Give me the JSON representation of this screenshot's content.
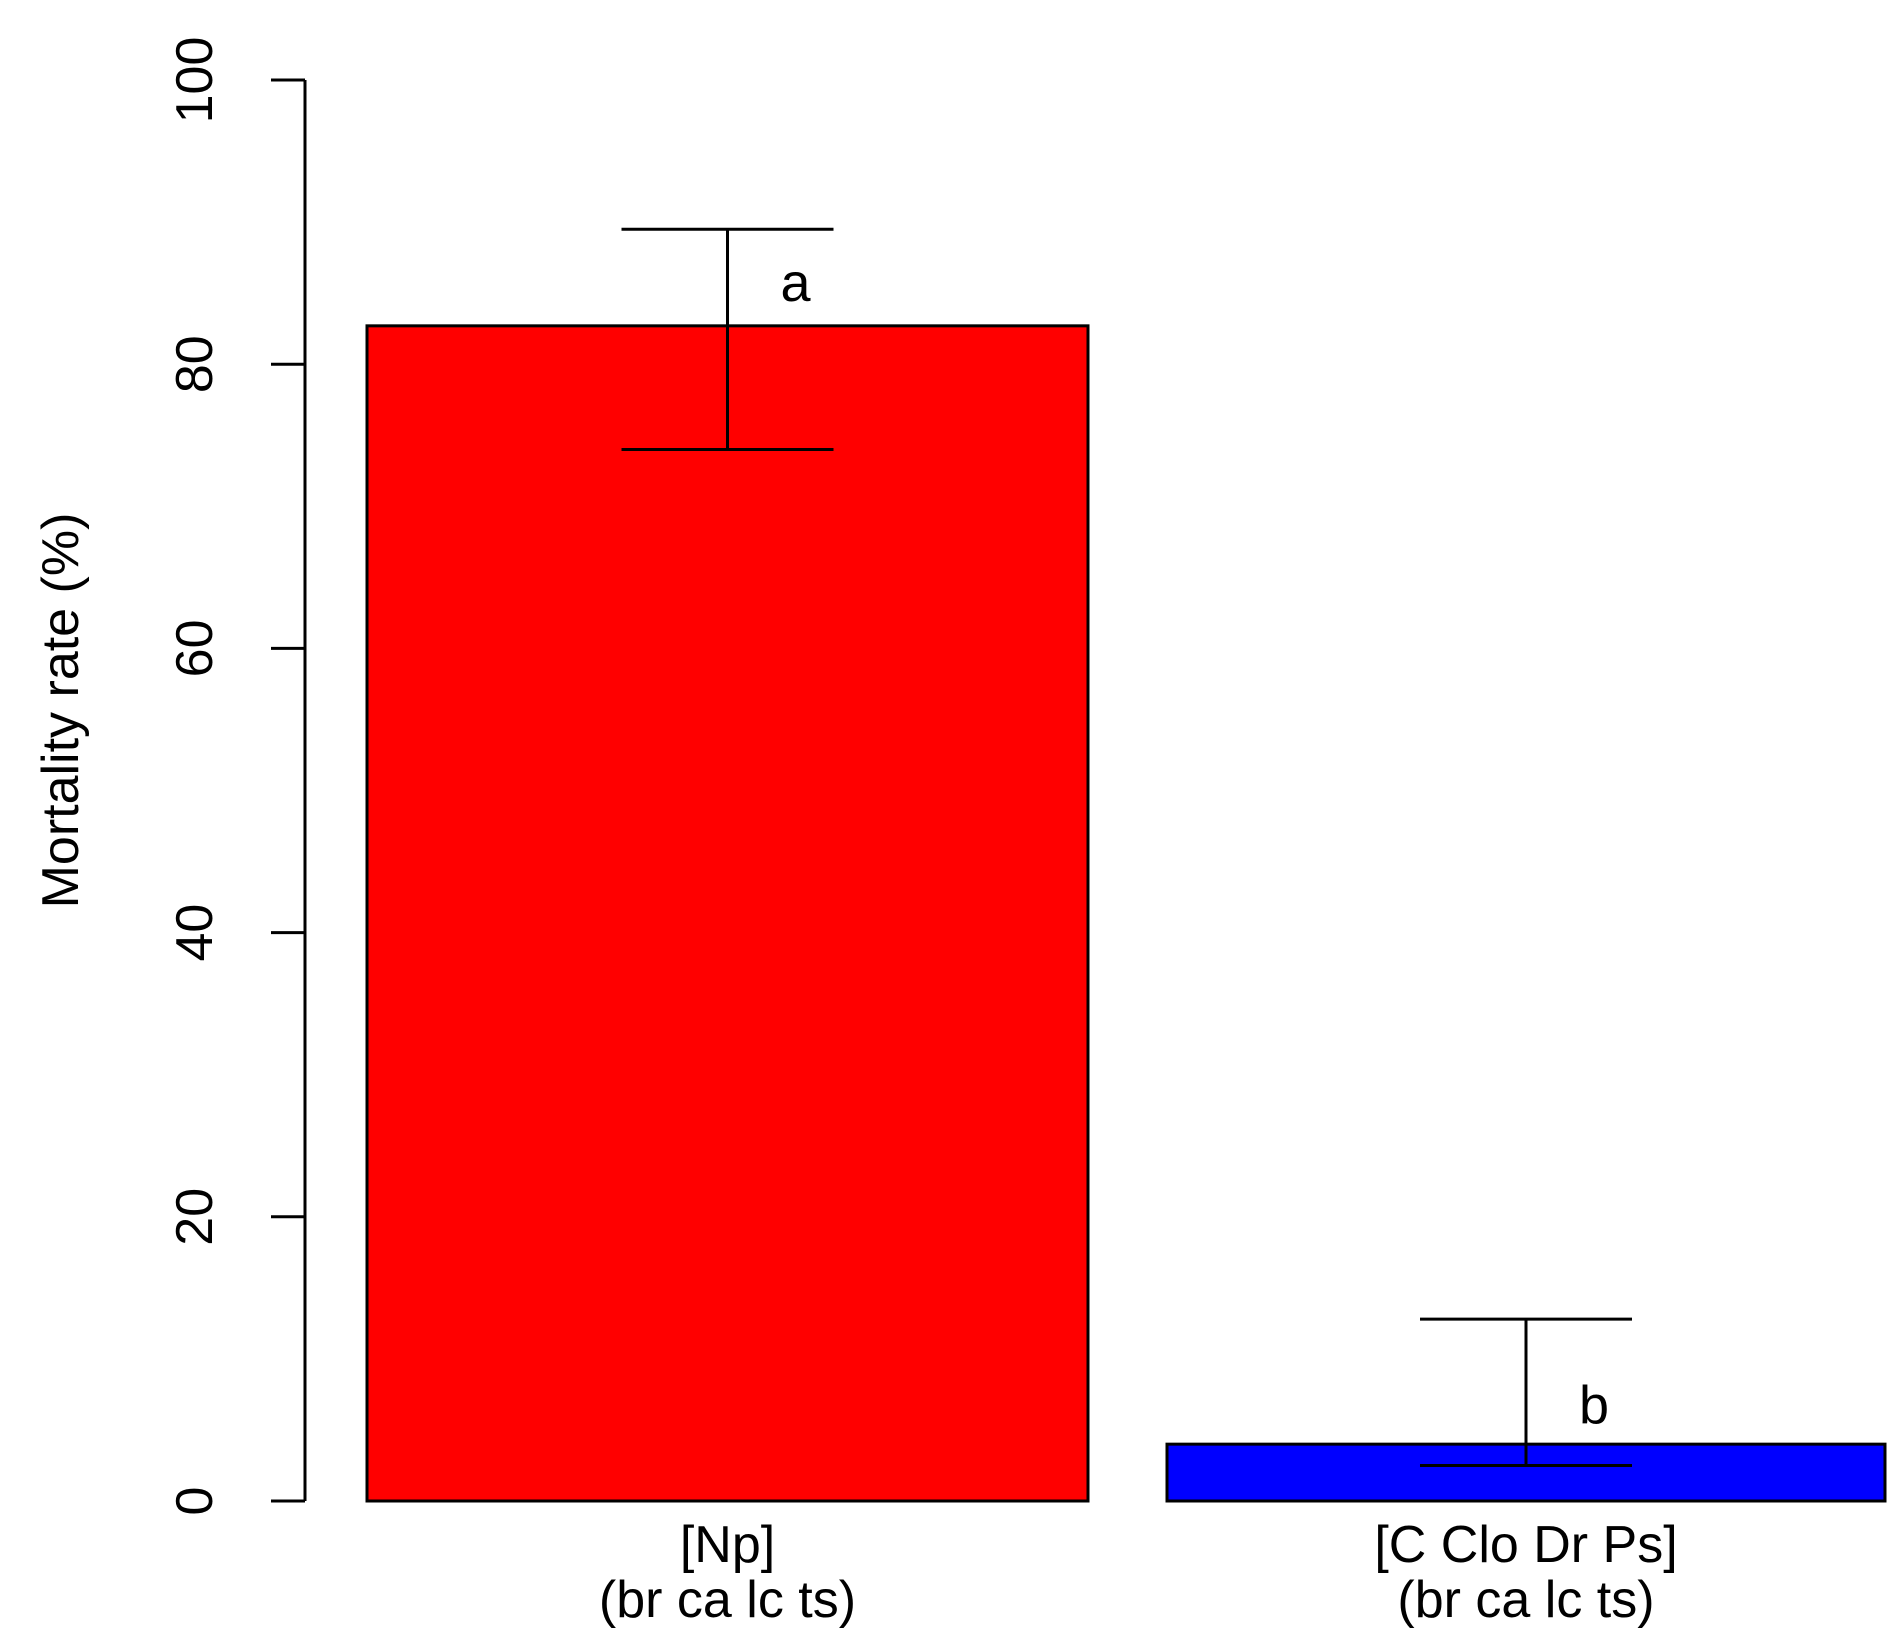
{
  "chart_data": {
    "type": "bar",
    "title": "",
    "xlabel": "",
    "ylabel": "Mortality rate (%)",
    "ylim": [
      0,
      100
    ],
    "yticks": [
      "0",
      "20",
      "40",
      "60",
      "80",
      "100"
    ],
    "grid": false,
    "categories": [
      {
        "line1": "[Np]",
        "line2": "(br ca lc ts)"
      },
      {
        "line1": "[C Clo Dr Ps]",
        "line2": "(br ca lc ts)"
      }
    ],
    "values": [
      82.7,
      4.0
    ],
    "error_low": [
      74.0,
      2.5
    ],
    "error_high": [
      89.5,
      12.8
    ],
    "significance_letters": [
      "a",
      "b"
    ],
    "colors": [
      "#ff0000",
      "#0000ff"
    ]
  }
}
